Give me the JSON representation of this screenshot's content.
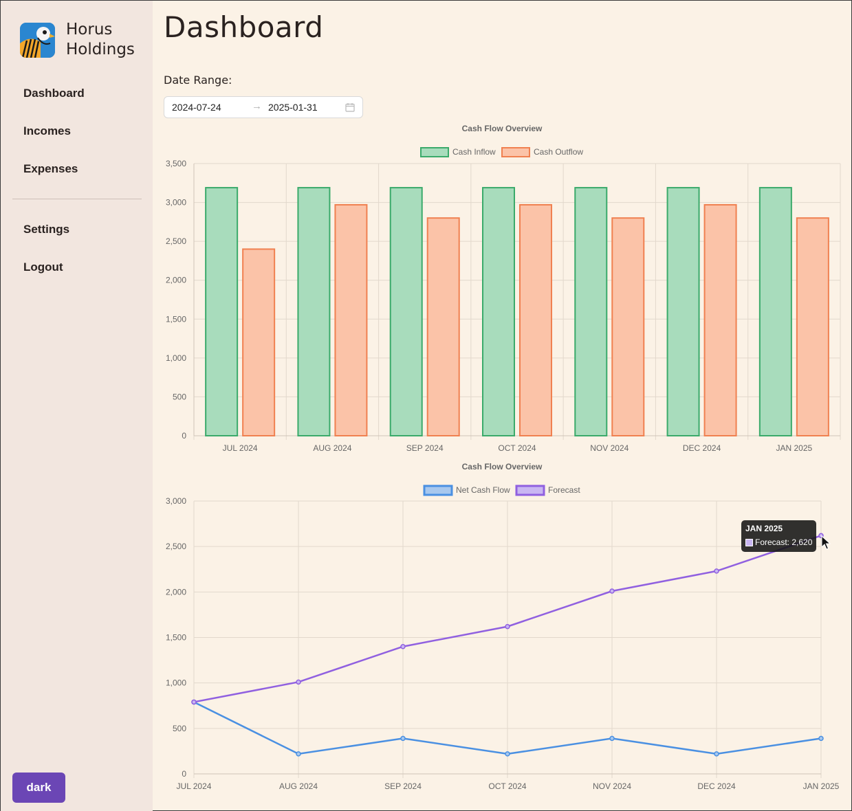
{
  "app": {
    "brand_line1": "Horus",
    "brand_line2": "Holdings"
  },
  "sidebar": {
    "items": [
      {
        "label": "Dashboard"
      },
      {
        "label": "Incomes"
      },
      {
        "label": "Expenses"
      }
    ],
    "secondary": [
      {
        "label": "Settings"
      },
      {
        "label": "Logout"
      }
    ],
    "theme_toggle": "dark"
  },
  "header": {
    "title": "Dashboard"
  },
  "filters": {
    "range_label": "Date Range:",
    "start": "2024-07-24",
    "end": "2025-01-31",
    "arrow": "→"
  },
  "tooltip": {
    "title": "JAN 2025",
    "body": "Forecast: 2,620"
  },
  "colors": {
    "accent": "#6b46b5",
    "inflow_fill": "#a8dcbc",
    "inflow_stroke": "#3aaa6a",
    "outflow_fill": "#fbc3a8",
    "outflow_stroke": "#f08050",
    "net": "#4a90e2",
    "forecast": "#9060e0"
  },
  "chart_data": [
    {
      "type": "bar",
      "title": "Cash Flow Overview",
      "categories": [
        "JUL 2024",
        "AUG 2024",
        "SEP 2024",
        "OCT 2024",
        "NOV 2024",
        "DEC 2024",
        "JAN 2025"
      ],
      "series": [
        {
          "name": "Cash Inflow",
          "values": [
            3190,
            3190,
            3190,
            3190,
            3190,
            3190,
            3190
          ]
        },
        {
          "name": "Cash Outflow",
          "values": [
            2400,
            2970,
            2800,
            2970,
            2800,
            2970,
            2800
          ]
        }
      ],
      "ylim": [
        0,
        3500
      ],
      "yticks": [
        "0",
        "500",
        "1,000",
        "1,500",
        "2,000",
        "2,500",
        "3,000",
        "3,500"
      ],
      "legend": "top-center",
      "grid": true
    },
    {
      "type": "line",
      "title": "Cash Flow Overview",
      "categories": [
        "JUL 2024",
        "AUG 2024",
        "SEP 2024",
        "OCT 2024",
        "NOV 2024",
        "DEC 2024",
        "JAN 2025"
      ],
      "series": [
        {
          "name": "Net Cash Flow",
          "values": [
            790,
            220,
            390,
            220,
            390,
            220,
            390
          ]
        },
        {
          "name": "Forecast",
          "values": [
            790,
            1010,
            1400,
            1620,
            2010,
            2230,
            2620
          ]
        }
      ],
      "ylim": [
        0,
        3000
      ],
      "yticks": [
        "0",
        "500",
        "1,000",
        "1,500",
        "2,000",
        "2,500",
        "3,000"
      ],
      "legend": "top-center",
      "grid": true
    }
  ]
}
